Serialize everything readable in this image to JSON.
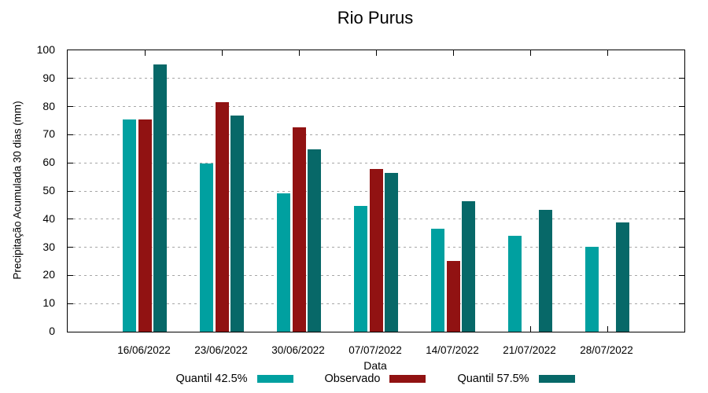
{
  "title": "Rio Purus",
  "chart_data": {
    "type": "bar",
    "title": "Rio Purus",
    "xlabel": "Data",
    "ylabel": "Precipitação Acumulada 30 dias (mm)",
    "ylim": [
      0,
      100
    ],
    "ytick_step": 10,
    "grid": "horizontal-dashed",
    "legend_position": "bottom-center",
    "background_color": "#ffffff",
    "axis_color": "#000000",
    "gridline_color": "#a6a6a6",
    "categories": [
      "16/06/2022",
      "23/06/2022",
      "30/06/2022",
      "07/07/2022",
      "14/07/2022",
      "21/07/2022",
      "28/07/2022"
    ],
    "series": [
      {
        "name": "Quantil 42.5%",
        "color": "#00a0a0",
        "values": [
          75.3,
          59.9,
          49.2,
          44.8,
          36.5,
          34.2,
          30.3
        ]
      },
      {
        "name": "Observado",
        "color": "#911212",
        "values": [
          75.3,
          81.7,
          72.6,
          57.7,
          25.2,
          null,
          null
        ]
      },
      {
        "name": "Quantil 57.5%",
        "color": "#076868",
        "values": [
          95.0,
          76.9,
          64.7,
          56.4,
          46.4,
          43.3,
          38.8
        ]
      }
    ]
  }
}
